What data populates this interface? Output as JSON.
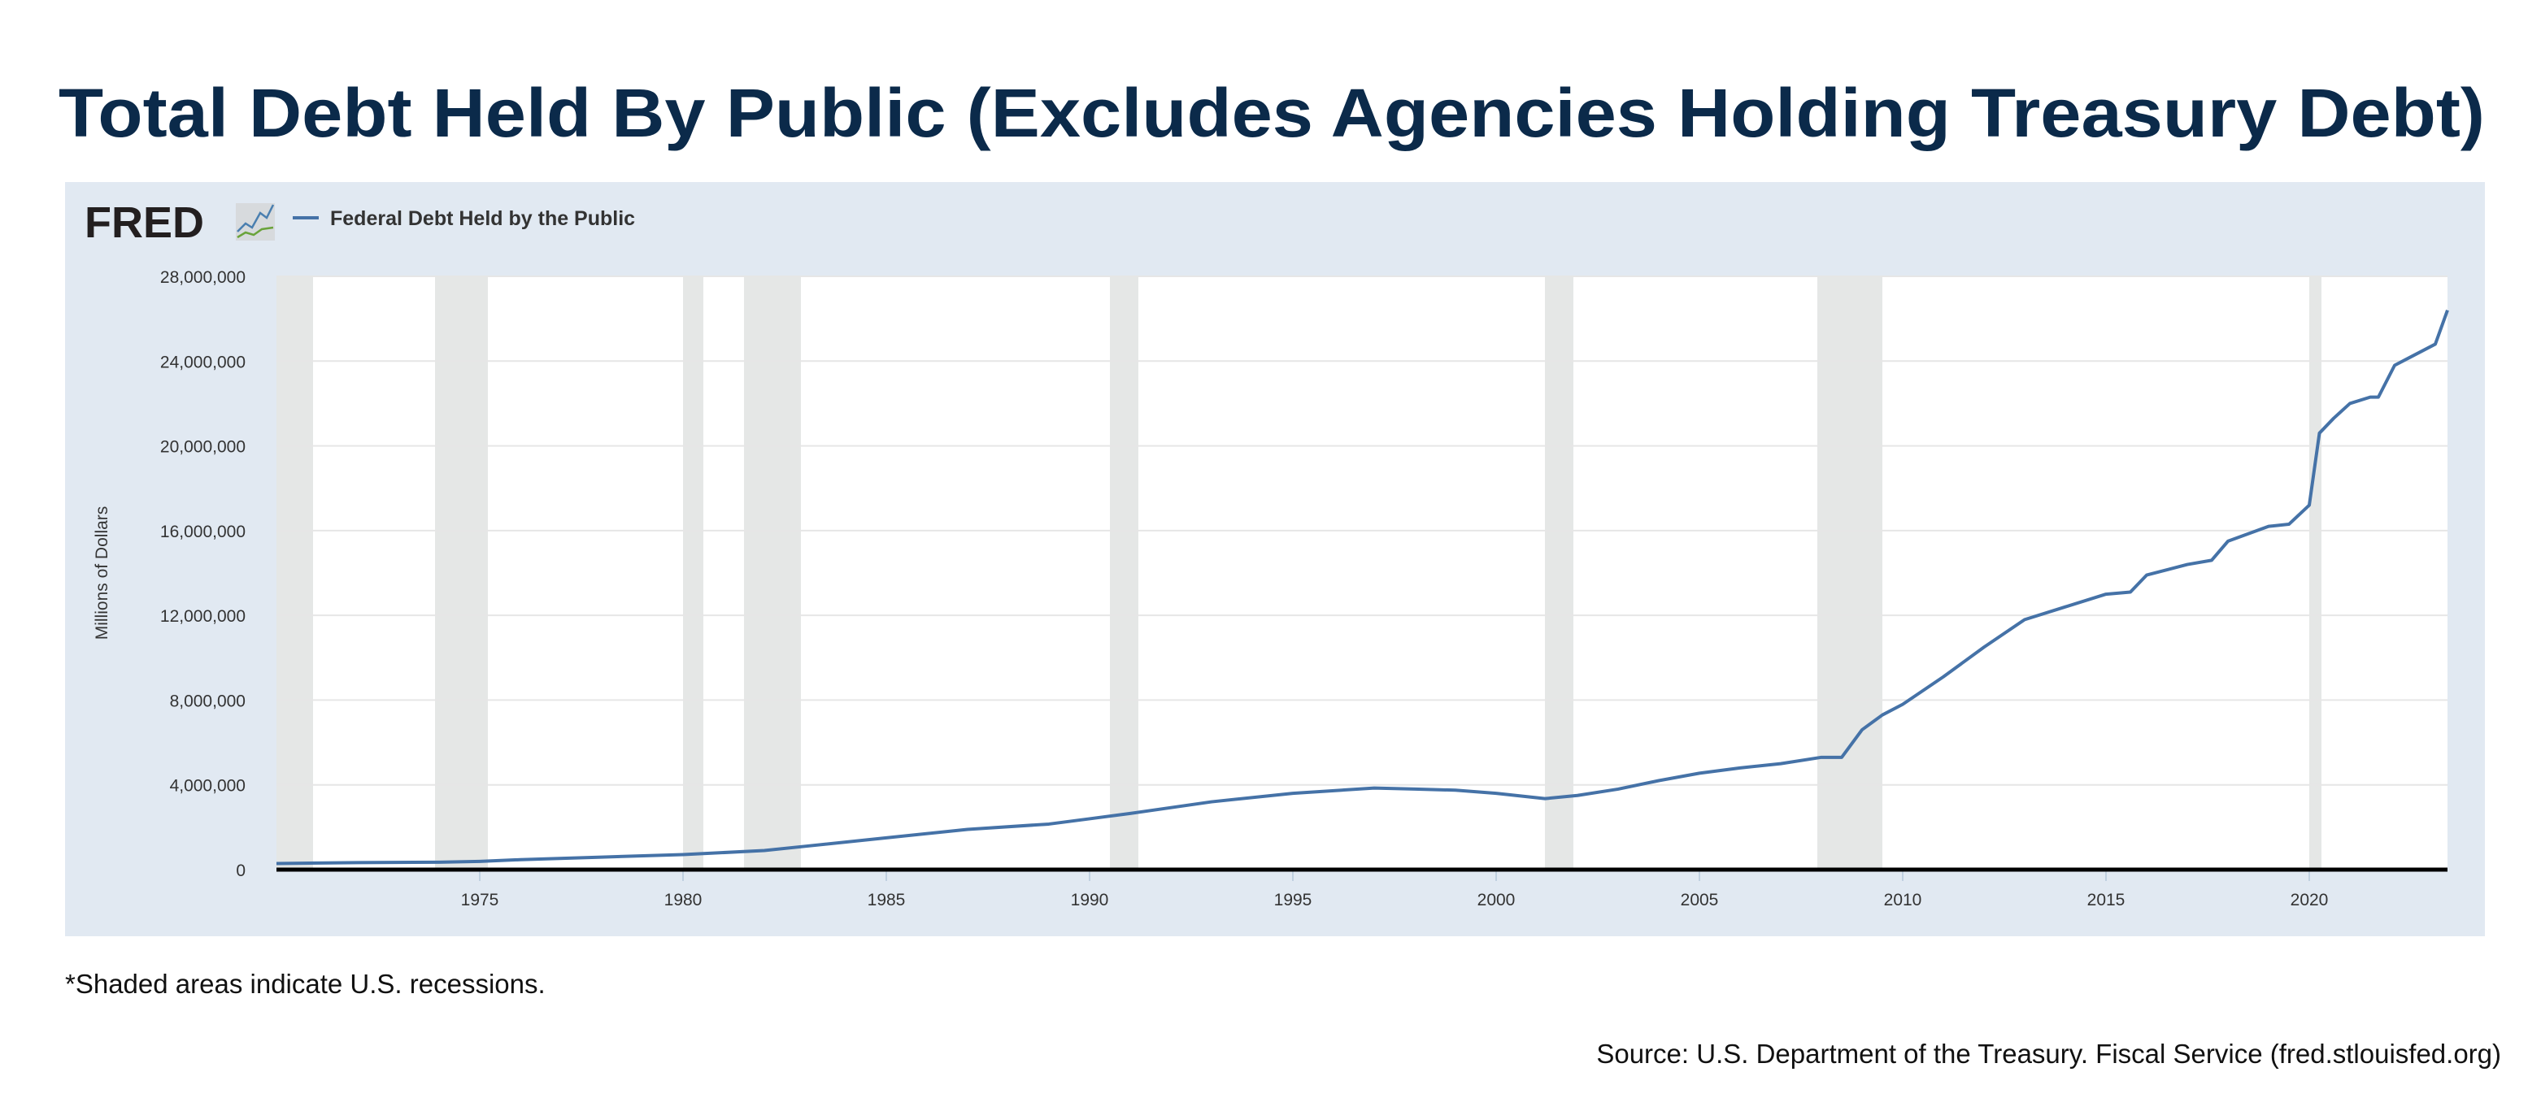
{
  "title": "Total Debt Held By Public (Excludes Agencies Holding Treasury Debt)",
  "logo_text": "FRED",
  "footnote": "*Shaded areas indicate U.S. recessions.",
  "source": "Source: U.S. Department of the Treasury. Fiscal Service (fred.stlouisfed.org)",
  "colors": {
    "line": "#4572a7",
    "panel": "#e1e9f2",
    "recession": "#e5e7e6",
    "title": "#0b2a4a"
  },
  "chart_data": {
    "type": "line",
    "title": "Total Debt Held By Public (Excludes Agencies Holding Treasury Debt)",
    "xlabel": "",
    "ylabel": "Millions of Dollars",
    "xlim": [
      1970,
      2023.4
    ],
    "ylim": [
      0,
      28000000
    ],
    "grid": true,
    "legend_position": "top-left",
    "x_ticks": [
      "1975",
      "1980",
      "1985",
      "1990",
      "1995",
      "2000",
      "2005",
      "2010",
      "2015",
      "2020"
    ],
    "y_ticks": [
      "0",
      "4,000,000",
      "8,000,000",
      "12,000,000",
      "16,000,000",
      "20,000,000",
      "24,000,000",
      "28,000,000"
    ],
    "recessions": [
      [
        1969.9,
        1970.9
      ],
      [
        1973.9,
        1975.2
      ],
      [
        1980.0,
        1980.5
      ],
      [
        1981.5,
        1982.9
      ],
      [
        1990.5,
        1991.2
      ],
      [
        2001.2,
        2001.9
      ],
      [
        2007.9,
        2009.5
      ],
      [
        2020.0,
        2020.3
      ]
    ],
    "series": [
      {
        "name": "Federal Debt Held by the Public",
        "x": [
          1970,
          1972,
          1974,
          1975,
          1976,
          1978,
          1980,
          1982,
          1983,
          1985,
          1987,
          1989,
          1990,
          1991,
          1993,
          1995,
          1997,
          1998,
          1999,
          2000,
          2001.2,
          2002,
          2003,
          2004,
          2005,
          2006,
          2007,
          2008,
          2008.5,
          2009,
          2009.5,
          2010,
          2011,
          2012,
          2013,
          2014,
          2015,
          2015.6,
          2016,
          2017,
          2017.6,
          2018,
          2019,
          2019.5,
          2020.0,
          2020.25,
          2020.6,
          2021,
          2021.5,
          2021.7,
          2022.1,
          2022.5,
          2023.1,
          2023.4
        ],
        "y": [
          290000,
          330000,
          350000,
          390000,
          470000,
          590000,
          710000,
          900000,
          1100000,
          1500000,
          1900000,
          2150000,
          2400000,
          2650000,
          3200000,
          3600000,
          3850000,
          3800000,
          3750000,
          3600000,
          3350000,
          3500000,
          3800000,
          4200000,
          4550000,
          4800000,
          5000000,
          5300000,
          5300000,
          6600000,
          7300000,
          7800000,
          9100000,
          10500000,
          11800000,
          12400000,
          13000000,
          13100000,
          13900000,
          14400000,
          14600000,
          15500000,
          16200000,
          16300000,
          17200000,
          20600000,
          21300000,
          22000000,
          22300000,
          22300000,
          23800000,
          24200000,
          24800000,
          26400000
        ]
      }
    ]
  }
}
